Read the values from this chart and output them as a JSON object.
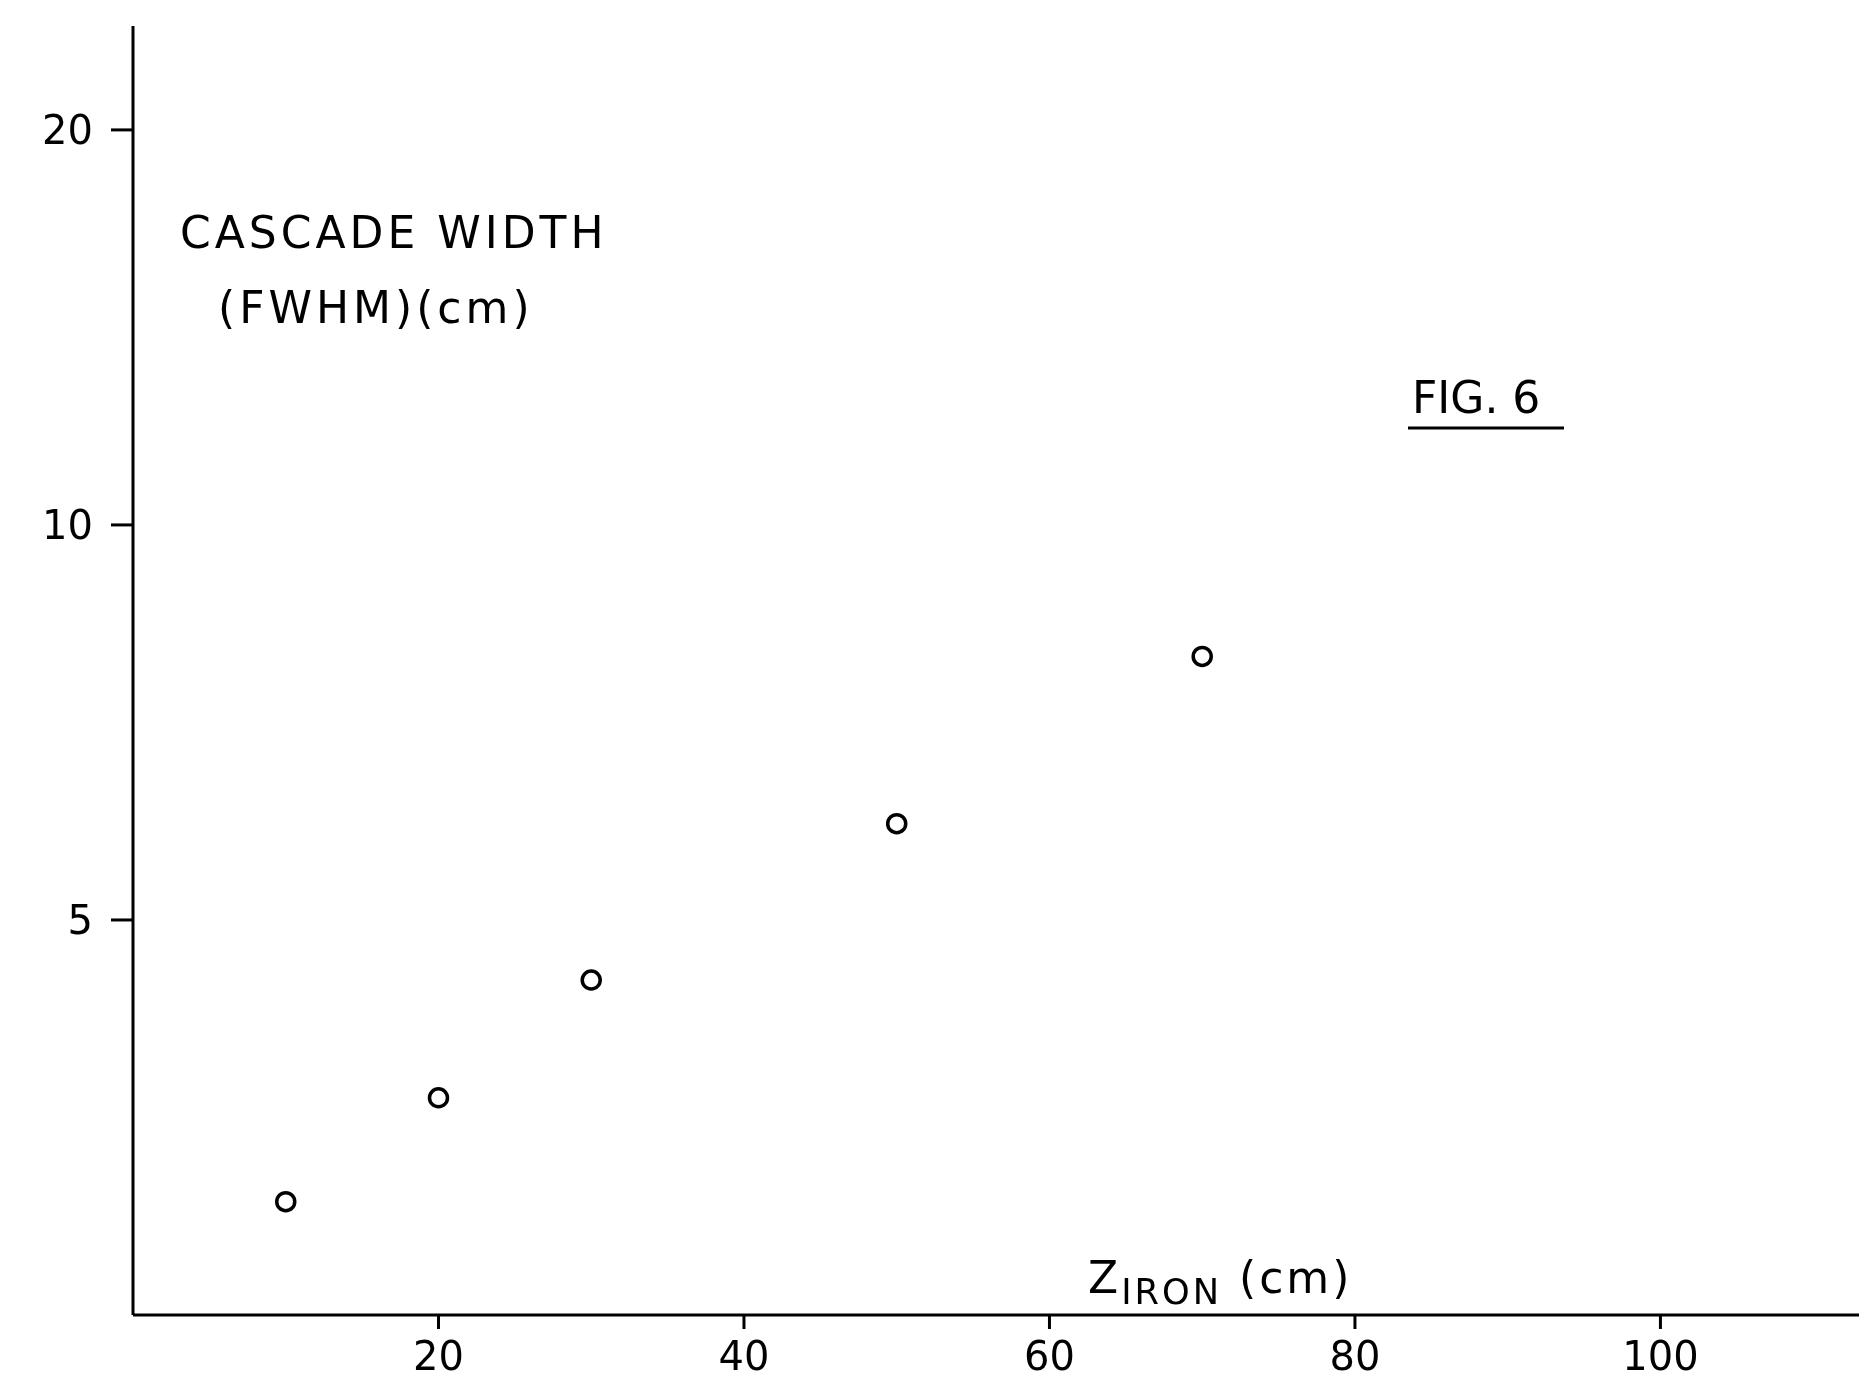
{
  "chart_data": {
    "type": "scatter",
    "xlabel": "Z$_{IRON}$ (cm)",
    "ylabel": "CASCADE WIDTH\n(FWHM)(cm)",
    "annotations": [
      "FIG. 6"
    ],
    "x": [
      10,
      20,
      30,
      50,
      70
    ],
    "series": [
      {
        "color": "#000000",
        "values": [
          3.05,
          3.66,
          4.5,
          5.92,
          7.94
        ]
      }
    ],
    "xlim": [
      0,
      113
    ],
    "xticks": [
      20,
      40,
      60,
      80,
      100
    ],
    "ylim": [
      2.5,
      24
    ],
    "yticks": [
      5,
      10,
      20
    ],
    "log": "y",
    "marker": "circle",
    "grid": false
  }
}
